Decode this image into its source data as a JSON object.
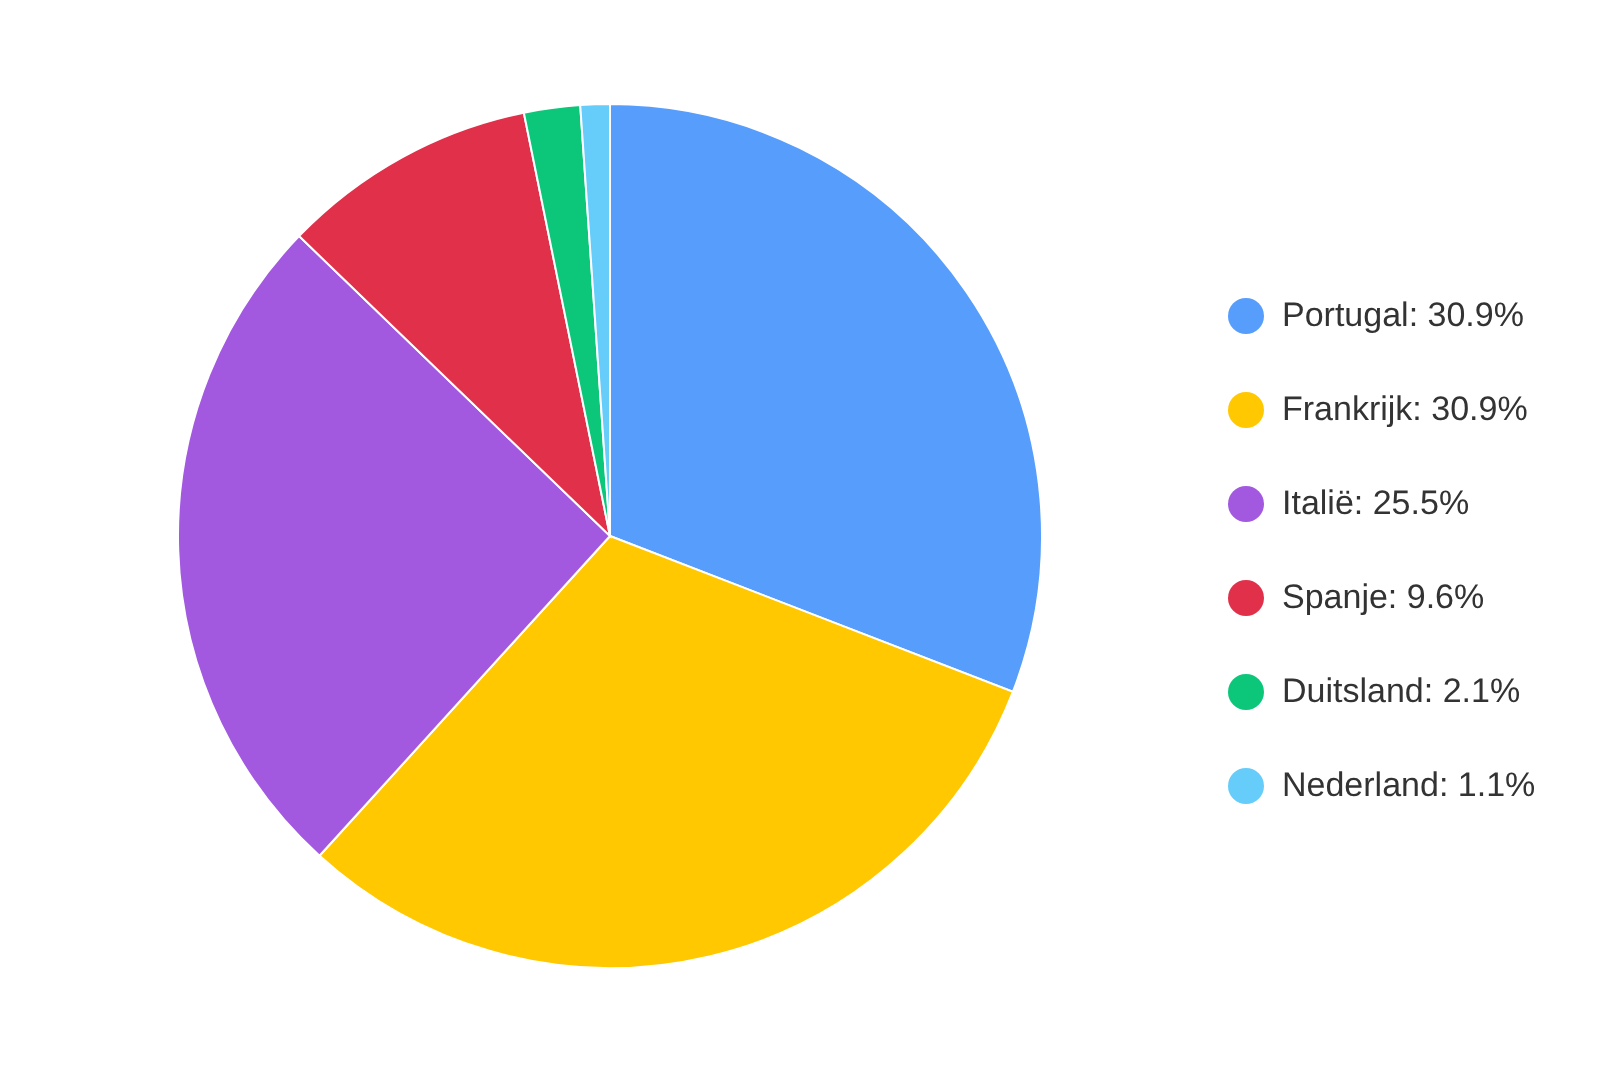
{
  "chart_data": {
    "type": "pie",
    "categories": [
      "Portugal",
      "Frankrijk",
      "Italië",
      "Spanje",
      "Duitsland",
      "Nederland"
    ],
    "values": [
      30.9,
      30.9,
      25.5,
      9.6,
      2.1,
      1.1
    ],
    "value_labels": [
      "30.9%",
      "30.9%",
      "25.5%",
      "9.6%",
      "2.1%",
      "1.1%"
    ],
    "colors": [
      "#579dfc",
      "#ffc800",
      "#a259e0",
      "#e0304a",
      "#0cc77a",
      "#66ccfa"
    ],
    "legend": "right"
  }
}
